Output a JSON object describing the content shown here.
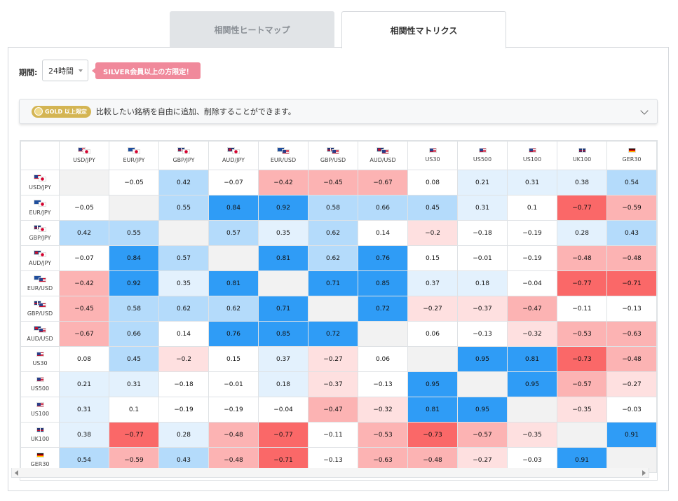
{
  "tabs": [
    {
      "label": "相関性ヒートマップ",
      "active": false
    },
    {
      "label": "相関性マトリクス",
      "active": true
    }
  ],
  "period": {
    "label": "期間:",
    "value": "24時間"
  },
  "silver_badge": "SILVER会員以上の方限定！",
  "gold": {
    "badge": "GOLD 以上限定",
    "text": "比較したい銘柄を自由に追加、削除することができます。"
  },
  "colors": {
    "neg_strong": "#fa6868",
    "neg_mid": "#fcb3b3",
    "neg_light": "#fee0e0",
    "pos_strong": "#2f9cf6",
    "pos_mid": "#b4dbfb",
    "pos_light": "#e3f1fd",
    "diag": "#f2f2f2"
  },
  "chart_data": {
    "type": "heatmap",
    "symbols": [
      {
        "label": "USD/JPY",
        "flags": [
          "USD",
          "JPY"
        ]
      },
      {
        "label": "EUR/JPY",
        "flags": [
          "EUR",
          "JPY"
        ]
      },
      {
        "label": "GBP/JPY",
        "flags": [
          "GBP",
          "JPY"
        ]
      },
      {
        "label": "AUD/JPY",
        "flags": [
          "AUD",
          "JPY"
        ]
      },
      {
        "label": "EUR/USD",
        "flags": [
          "EUR",
          "USD"
        ]
      },
      {
        "label": "GBP/USD",
        "flags": [
          "GBP",
          "USD"
        ]
      },
      {
        "label": "AUD/USD",
        "flags": [
          "AUD",
          "USD"
        ]
      },
      {
        "label": "US30",
        "flags": [
          "USD"
        ]
      },
      {
        "label": "US500",
        "flags": [
          "USD"
        ]
      },
      {
        "label": "US100",
        "flags": [
          "USD"
        ]
      },
      {
        "label": "UK100",
        "flags": [
          "GBP"
        ]
      },
      {
        "label": "GER30",
        "flags": [
          "DE"
        ]
      }
    ],
    "values": [
      [
        null,
        -0.05,
        0.42,
        -0.07,
        -0.42,
        -0.45,
        -0.67,
        0.08,
        0.21,
        0.31,
        0.38,
        0.54
      ],
      [
        -0.05,
        null,
        0.55,
        0.84,
        0.92,
        0.58,
        0.66,
        0.45,
        0.31,
        0.1,
        -0.77,
        -0.59
      ],
      [
        0.42,
        0.55,
        null,
        0.57,
        0.35,
        0.62,
        0.14,
        -0.2,
        -0.18,
        -0.19,
        0.28,
        0.43
      ],
      [
        -0.07,
        0.84,
        0.57,
        null,
        0.81,
        0.62,
        0.76,
        0.15,
        -0.01,
        -0.19,
        -0.48,
        -0.48
      ],
      [
        -0.42,
        0.92,
        0.35,
        0.81,
        null,
        0.71,
        0.85,
        0.37,
        0.18,
        -0.04,
        -0.77,
        -0.71
      ],
      [
        -0.45,
        0.58,
        0.62,
        0.62,
        0.71,
        null,
        0.72,
        -0.27,
        -0.37,
        -0.47,
        -0.11,
        -0.13
      ],
      [
        -0.67,
        0.66,
        0.14,
        0.76,
        0.85,
        0.72,
        null,
        0.06,
        -0.13,
        -0.32,
        -0.53,
        -0.63
      ],
      [
        0.08,
        0.45,
        -0.2,
        0.15,
        0.37,
        -0.27,
        0.06,
        null,
        0.95,
        0.81,
        -0.73,
        -0.48
      ],
      [
        0.21,
        0.31,
        -0.18,
        -0.01,
        0.18,
        -0.37,
        -0.13,
        0.95,
        null,
        0.95,
        -0.57,
        -0.27
      ],
      [
        0.31,
        0.1,
        -0.19,
        -0.19,
        -0.04,
        -0.47,
        -0.32,
        0.81,
        0.95,
        null,
        -0.35,
        -0.03
      ],
      [
        0.38,
        -0.77,
        0.28,
        -0.48,
        -0.77,
        -0.11,
        -0.53,
        -0.73,
        -0.57,
        -0.35,
        null,
        0.91
      ],
      [
        0.54,
        -0.59,
        0.43,
        -0.48,
        -0.71,
        -0.13,
        -0.63,
        -0.48,
        -0.27,
        -0.03,
        0.91,
        null
      ]
    ]
  }
}
